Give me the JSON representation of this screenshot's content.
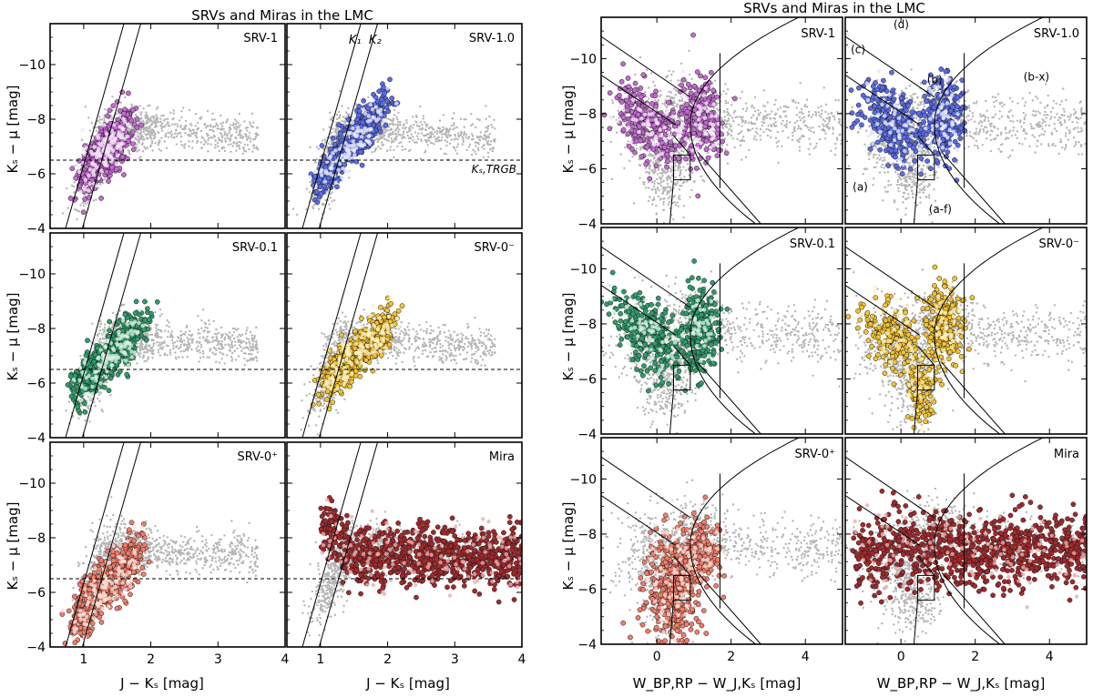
{
  "chart_data": [
    {
      "type": "scatter",
      "title": "SRVs and Miras in the LMC",
      "xlabel": "J − Kₛ [mag]",
      "ylabel": "Kₛ − μ [mag]",
      "xlim": [
        0.5,
        4.0
      ],
      "ylim": [
        -4,
        -11.5
      ],
      "x_ticks": [
        1,
        2,
        3,
        4
      ],
      "y_ticks": [
        -4,
        -6,
        -8,
        -10
      ],
      "x_tick_labels": [
        "1",
        "2",
        "3",
        "4"
      ],
      "y_tick_labels": [
        "−4",
        "−6",
        "−8",
        "−10"
      ],
      "trgb_ks": -6.5,
      "trgb_label": "Kₛ,TRGB",
      "lines": [
        {
          "name": "K₁",
          "label": "K1",
          "x": [
            0.73,
            1.6
          ],
          "y": [
            -4.0,
            -11.5
          ]
        },
        {
          "name": "K₂",
          "label": "K2",
          "x": [
            0.98,
            1.85
          ],
          "y": [
            -4.0,
            -11.5
          ]
        }
      ],
      "panels": [
        {
          "label": "SRV-1",
          "color": "#c36bd0",
          "highlight": "#f5e6f8"
        },
        {
          "label": "SRV-1.0",
          "color": "#5b6ce8",
          "highlight": "#e4e8fc"
        },
        {
          "label": "SRV-0.1",
          "color": "#2f9d6b",
          "highlight": "#d8f0e2"
        },
        {
          "label": "SRV-0⁻",
          "color": "#f2c232",
          "highlight": "#fff2c8"
        },
        {
          "label": "SRV-0⁺",
          "color": "#f07d6a",
          "highlight": "#fde0da"
        },
        {
          "label": "Mira",
          "color": "#a3292c",
          "highlight": "#e9b0ad"
        }
      ]
    },
    {
      "type": "scatter",
      "title": "SRVs and Miras in the LMC",
      "xlabel": "W_BP,RP − W_J,Kₛ [mag]",
      "ylabel": "Kₛ − μ [mag]",
      "xlim": [
        -1.5,
        5.0
      ],
      "ylim": [
        -4,
        -11.5
      ],
      "x_ticks": [
        0,
        2,
        4
      ],
      "y_ticks": [
        -4,
        -6,
        -8,
        -10
      ],
      "x_tick_labels": [
        "0",
        "2",
        "4"
      ],
      "y_tick_labels": [
        "−4",
        "−6",
        "−8",
        "−10"
      ],
      "region_labels": [
        "(a)",
        "(b)",
        "(c)",
        "(d)",
        "(b-x)",
        "(a-f)"
      ],
      "panels": [
        {
          "label": "SRV-1",
          "color": "#c36bd0",
          "highlight": "#f5e6f8"
        },
        {
          "label": "SRV-1.0",
          "color": "#5b6ce8",
          "highlight": "#e4e8fc"
        },
        {
          "label": "SRV-0.1",
          "color": "#2f9d6b",
          "highlight": "#d8f0e2"
        },
        {
          "label": "SRV-0⁻",
          "color": "#f2c232",
          "highlight": "#fff2c8"
        },
        {
          "label": "SRV-0⁺",
          "color": "#f07d6a",
          "highlight": "#fde0da"
        },
        {
          "label": "Mira",
          "color": "#a3292c",
          "highlight": "#e9b0ad"
        }
      ]
    }
  ]
}
